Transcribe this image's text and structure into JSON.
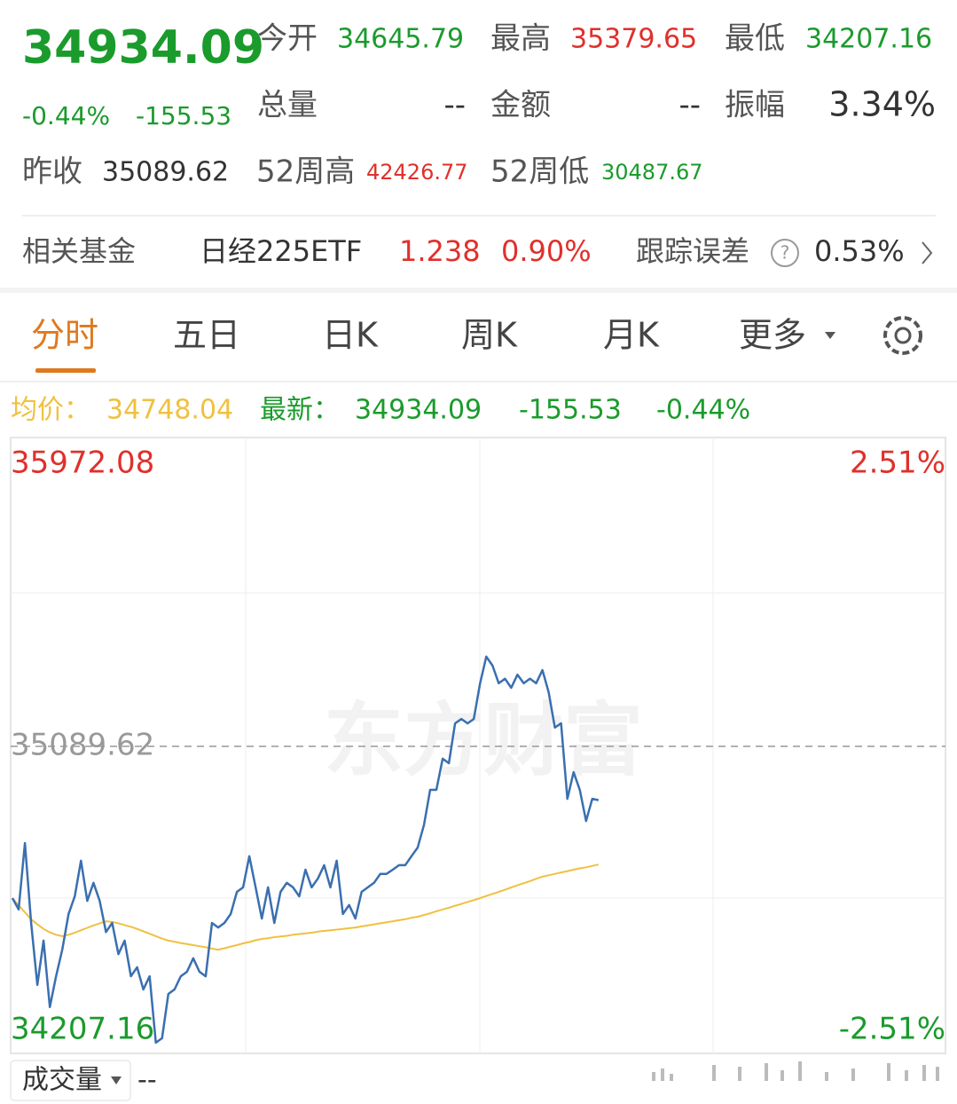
{
  "header": {
    "price": "34934.09",
    "change_pct": "-0.44%",
    "change": "-155.53",
    "fields": [
      {
        "label": "今开",
        "value": "34645.79"
      },
      {
        "label": "最高",
        "value": "35379.65"
      },
      {
        "label": "最低",
        "value": "34207.16"
      },
      {
        "label": "总量",
        "value": "--"
      },
      {
        "label": "金额",
        "value": "--"
      },
      {
        "label": "振幅",
        "value": "3.34%"
      },
      {
        "label": "昨收",
        "value": "35089.62"
      },
      {
        "label": "52周高",
        "value": "42426.77"
      },
      {
        "label": "52周低",
        "value": "30487.67"
      }
    ]
  },
  "fund": {
    "label": "相关基金",
    "name": "日经225ETF",
    "price": "1.238",
    "change": "0.90%",
    "tracking_label": "跟踪误差",
    "tracking": "0.53%"
  },
  "tabs": [
    "分时",
    "五日",
    "日K",
    "周K",
    "月K",
    "更多"
  ],
  "chart_data": {
    "type": "line",
    "watermark": "东方财富",
    "legend_values": [
      "34748.04",
      "34934.09",
      "-155.53",
      "-0.44%"
    ],
    "ylim": [
      34207.16,
      35972.08
    ],
    "yticks": [
      34207.16,
      35089.62,
      35972.08
    ],
    "y2lim": [
      -2.51,
      2.51
    ],
    "y2ticks": [
      {
        "value": -2.51,
        "label": "-2.51%"
      },
      {
        "value": 2.51,
        "label": "2.51%"
      }
    ],
    "series": [
      {
        "name": "最新：",
        "color": "#3a6fb0",
        "values": [
          34651,
          34618,
          34810,
          34579,
          34400,
          34528,
          34336,
          34425,
          34502,
          34605,
          34656,
          34759,
          34643,
          34695,
          34643,
          34553,
          34579,
          34489,
          34528,
          34425,
          34451,
          34387,
          34425,
          34233,
          34246,
          34374,
          34387,
          34425,
          34438,
          34477,
          34438,
          34425,
          34579,
          34566,
          34579,
          34605,
          34669,
          34682,
          34772,
          34682,
          34592,
          34682,
          34579,
          34669,
          34695,
          34682,
          34656,
          34733,
          34682,
          34708,
          34746,
          34682,
          34759,
          34605,
          34631,
          34592,
          34669,
          34682,
          34695,
          34721,
          34721,
          34733,
          34746,
          34746,
          34772,
          34797,
          34862,
          34964,
          34964,
          35054,
          35041,
          35156,
          35169,
          35156,
          35169,
          35272,
          35349,
          35323,
          35272,
          35285,
          35259,
          35297,
          35272,
          35285,
          35272,
          35310,
          35246,
          35144,
          35156,
          34938,
          35015,
          34964,
          34874,
          34938,
          34934.09
        ]
      },
      {
        "name": "均价：",
        "color": "#f0c040",
        "values": [
          34651,
          34630,
          34610,
          34590,
          34575,
          34562,
          34552,
          34545,
          34541,
          34545,
          34551,
          34558,
          34565,
          34572,
          34578,
          34584,
          34582,
          34578,
          34573,
          34568,
          34562,
          34555,
          34548,
          34541,
          34534,
          34528,
          34525,
          34521,
          34518,
          34515,
          34512,
          34509,
          34505,
          34502,
          34506,
          34511,
          34515,
          34520,
          34524,
          34529,
          34533,
          34535,
          34538,
          34540,
          34542,
          34545,
          34547,
          34549,
          34551,
          34554,
          34556,
          34558,
          34560,
          34562,
          34564,
          34566,
          34569,
          34572,
          34575,
          34578,
          34581,
          34584,
          34587,
          34590,
          34594,
          34597,
          34602,
          34607,
          34613,
          34618,
          34623,
          34629,
          34634,
          34640,
          34645,
          34651,
          34657,
          34663,
          34669,
          34675,
          34682,
          34688,
          34694,
          34700,
          34707,
          34713,
          34717,
          34721,
          34725,
          34729,
          34733,
          34737,
          34740,
          34744,
          34748.04
        ]
      }
    ]
  },
  "volume": {
    "label": "成交量",
    "value": "--"
  }
}
